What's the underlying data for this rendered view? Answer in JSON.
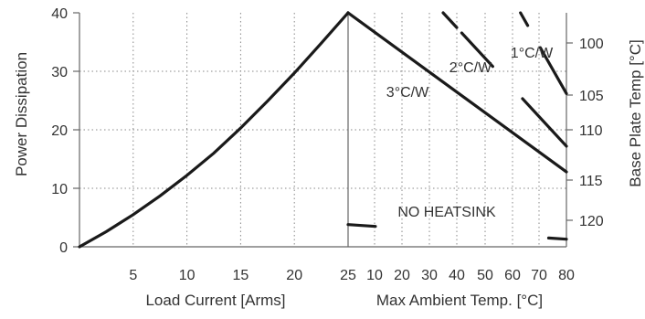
{
  "chart_data": {
    "type": "line",
    "left_panel": {
      "xlabel": "Load Current  [Arms]",
      "ylabel": "Power Dissipation",
      "xlim": [
        0,
        25
      ],
      "ylim": [
        0,
        40
      ],
      "x_ticks": [
        "5",
        "10",
        "15",
        "20",
        "25"
      ],
      "y_ticks": [
        "0",
        "10",
        "20",
        "30",
        "40"
      ],
      "series": [
        {
          "x": [
            0,
            2.5,
            5,
            7.5,
            10,
            12.5,
            15,
            17.5,
            20,
            22.5,
            25
          ],
          "y": [
            0,
            2.6,
            5.5,
            8.7,
            12.2,
            16.0,
            20.3,
            24.9,
            29.7,
            34.8,
            40
          ]
        }
      ]
    },
    "right_panel": {
      "xlabel": "Max Ambient Temp. [°C]",
      "ylabel": "Base Plate Temp [°C]",
      "x_ticks": [
        "10",
        "20",
        "30",
        "40",
        "50",
        "60",
        "70",
        "80"
      ],
      "y2_ticks": [
        "100",
        "105",
        "110",
        "115",
        "120"
      ],
      "series": [
        {
          "name": "3°C/W",
          "points": [
            [
              0,
              40
            ],
            [
              80,
              12.8
            ]
          ]
        },
        {
          "name": "2°C/W",
          "points": [
            [
              35,
              40
            ],
            [
              80,
              17.2
            ]
          ]
        },
        {
          "name": "1°C/W",
          "points": [
            [
              63,
              40
            ],
            [
              80,
              26.2
            ]
          ]
        },
        {
          "name": "NO HEATSINK",
          "points": [
            [
              0,
              3.8
            ],
            [
              80,
              1.3
            ]
          ]
        }
      ]
    }
  }
}
